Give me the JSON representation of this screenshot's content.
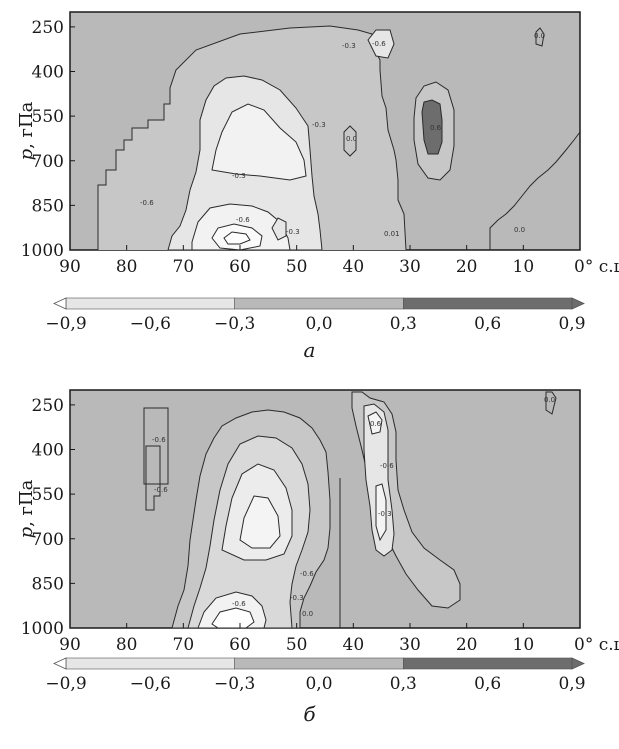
{
  "chart_data": [
    {
      "type": "heatmap",
      "panel_label": "а",
      "ylabel_var": "p",
      "ylabel_unit": ", гПа",
      "x_ticks": [
        "90",
        "80",
        "70",
        "60",
        "50",
        "40",
        "30",
        "20",
        "10",
        "0° с.ш."
      ],
      "x_range": [
        90,
        0
      ],
      "y_ticks": [
        "250",
        "400",
        "550",
        "700",
        "850",
        "1000"
      ],
      "y_range": [
        1000,
        200
      ],
      "regions": [
        {
          "name": "negative-core-main",
          "level": -0.9,
          "center_lat": 57,
          "center_p": 900
        },
        {
          "name": "negative-upper",
          "level": -0.6,
          "center_lat": 55,
          "center_p": 620
        },
        {
          "name": "positive-core",
          "level": 0.6,
          "center_lat": 24,
          "center_p": 600
        }
      ],
      "contour_labels": [
        "-0.6",
        "-0.3",
        "-0.3",
        "0.0",
        "-0.6",
        "-0.3",
        "0.01",
        "0.0",
        "-0.6",
        "0.0",
        "-0.3",
        "0.6"
      ],
      "colorbar": {
        "ticks": [
          "−0,9",
          "−0,6",
          "−0,3",
          "0,0",
          "0,3",
          "0,6",
          "0,9"
        ],
        "bins": [
          {
            "from": -0.9,
            "to": -0.3,
            "color": "#e6e6e6"
          },
          {
            "from": -0.3,
            "to": 0.3,
            "color": "#b9b9b9"
          },
          {
            "from": 0.3,
            "to": 0.9,
            "color": "#6d6d6d"
          }
        ]
      }
    },
    {
      "type": "heatmap",
      "panel_label": "б",
      "ylabel_var": "p",
      "ylabel_unit": ", гПа",
      "x_ticks": [
        "90",
        "80",
        "70",
        "60",
        "50",
        "40",
        "30",
        "20",
        "10",
        "0° с.ш."
      ],
      "x_range": [
        90,
        0
      ],
      "y_ticks": [
        "250",
        "400",
        "550",
        "700",
        "850",
        "1000"
      ],
      "y_range": [
        1000,
        200
      ],
      "regions": [
        {
          "name": "negative-core-main",
          "level": -0.9,
          "center_lat": 58,
          "center_p": 930
        },
        {
          "name": "negative-upper",
          "level": -0.6,
          "center_lat": 53,
          "center_p": 640
        },
        {
          "name": "negative-band-30N",
          "level": -0.6,
          "center_lat": 31,
          "center_p": 600
        }
      ],
      "contour_labels": [
        "-0.6",
        "-0.6",
        "0.6",
        "-0.6",
        "-0.6",
        "-0.3",
        "0.0",
        "-0.3",
        "-0.6",
        "0.0"
      ],
      "colorbar": {
        "ticks": [
          "−0,9",
          "−0,6",
          "−0,3",
          "0,0",
          "0,3",
          "0,6",
          "0,9"
        ],
        "bins": [
          {
            "from": -0.9,
            "to": -0.3,
            "color": "#e6e6e6"
          },
          {
            "from": -0.3,
            "to": 0.3,
            "color": "#b9b9b9"
          },
          {
            "from": 0.3,
            "to": 0.9,
            "color": "#6d6d6d"
          }
        ]
      }
    }
  ]
}
